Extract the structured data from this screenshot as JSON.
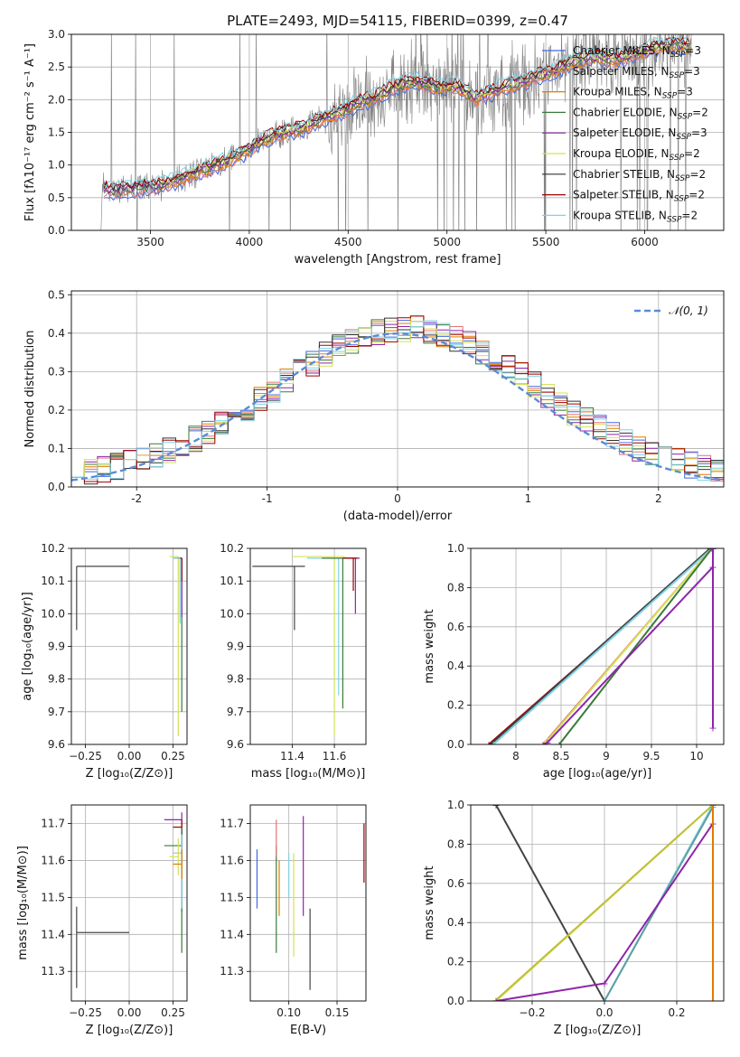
{
  "chart_data": [
    {
      "type": "line",
      "title": "PLATE=2493, MJD=54115, FIBERID=0399, z=0.47",
      "xlabel": "wavelength [Angstrom, rest frame]",
      "ylabel": "Flux [f$_\\lambda$ 10$^{-17}$ erg cm$^{-2}$ s$^{-1}$ A$^{-1}$]",
      "ylabel_display": "Flux [fλ10⁻¹⁷ erg cm⁻² s⁻¹ A⁻¹]",
      "xlim": [
        3100,
        6400
      ],
      "ylim": [
        0,
        3.0
      ],
      "xticks": [
        3500,
        4000,
        4500,
        5000,
        5500,
        6000
      ],
      "yticks": [
        0.0,
        0.5,
        1.0,
        1.5,
        2.0,
        2.5,
        3.0
      ],
      "legend": "top-right",
      "series": [
        {
          "name": "Chabrier MILES, N_SSP=3",
          "label": "Chabrier MILES, N",
          "sub": "SSP",
          "suf": "=3",
          "color": "#4169e1"
        },
        {
          "name": "Salpeter MILES, N_SSP=3",
          "label": "Salpeter MILES, N",
          "sub": "SSP",
          "suf": "=3",
          "color": "#e57373"
        },
        {
          "name": "Kroupa MILES, N_SSP=3",
          "label": "Kroupa MILES, N",
          "sub": "SSP",
          "suf": "=3",
          "color": "#e07b00"
        },
        {
          "name": "Chabrier ELODIE, N_SSP=2",
          "label": "Chabrier ELODIE, N",
          "sub": "SSP",
          "suf": "=2",
          "color": "#3a7a3a"
        },
        {
          "name": "Salpeter ELODIE, N_SSP=3",
          "label": "Salpeter ELODIE, N",
          "sub": "SSP",
          "suf": "=3",
          "color": "#8e24aa"
        },
        {
          "name": "Kroupa ELODIE, N_SSP=2",
          "label": "Kroupa ELODIE, N",
          "sub": "SSP",
          "suf": "=2",
          "color": "#d4e157"
        },
        {
          "name": "Chabrier STELIB, N_SSP=2",
          "label": "Chabrier STELIB, N",
          "sub": "SSP",
          "suf": "=2",
          "color": "#333333"
        },
        {
          "name": "Salpeter STELIB, N_SSP=2",
          "label": "Salpeter STELIB, N",
          "sub": "SSP",
          "suf": "=2",
          "color": "#9b0000"
        },
        {
          "name": "Kroupa STELIB, N_SSP=2",
          "label": "Kroupa STELIB, N",
          "sub": "SSP",
          "suf": "=2",
          "color": "#7fd3e6"
        }
      ],
      "continuum_wavelength": [
        3270,
        3350,
        3450,
        3550,
        3650,
        3750,
        3850,
        3950,
        4050,
        4150,
        4250,
        4350,
        4450,
        4550,
        4650,
        4750,
        4850,
        4950,
        5050,
        5150,
        5250,
        5350,
        5450,
        5550,
        5650,
        5750,
        5850,
        5950,
        6050,
        6150,
        6240
      ],
      "continuum_flux": [
        0.62,
        0.62,
        0.65,
        0.68,
        0.78,
        0.92,
        1.02,
        1.15,
        1.35,
        1.48,
        1.55,
        1.68,
        1.8,
        1.95,
        2.05,
        2.22,
        2.28,
        2.2,
        2.2,
        2.02,
        2.15,
        2.25,
        2.35,
        2.45,
        2.6,
        2.65,
        2.62,
        2.7,
        2.8,
        2.85,
        2.8
      ],
      "observed_color": "#808080"
    },
    {
      "type": "line",
      "xlabel": "(data-model)/error",
      "ylabel": "Normed distribution",
      "xlim": [
        -2.5,
        2.5
      ],
      "ylim": [
        0,
        0.51
      ],
      "xticks": [
        -2,
        -1,
        0,
        1,
        2
      ],
      "yticks": [
        0.0,
        0.1,
        0.2,
        0.3,
        0.4,
        0.5
      ],
      "reference_curve": {
        "name": "N(0,1)",
        "label_math": "𝒩(0, 1)",
        "mean": 0,
        "sigma": 1,
        "color": "#5b8bd6",
        "style": "dashed"
      },
      "histogram_bin_width": 0.1,
      "histogram_mean": 0.08,
      "histogram_sigma": 1.0,
      "legend": "top-right"
    },
    {
      "type": "scatter",
      "xlabel": "Z [log₁₀(Z/Z⊙)]",
      "ylabel": "age  [log₁₀(age/yr)]",
      "xlim": [
        -0.33,
        0.33
      ],
      "ylim": [
        9.6,
        10.2
      ],
      "xticks": [
        -0.25,
        0.0,
        0.25
      ],
      "xtick_labels": [
        "−0.25",
        "0.00",
        "0.25"
      ],
      "yticks": [
        9.6,
        9.7,
        9.8,
        9.9,
        10.0,
        10.1,
        10.2
      ],
      "errorbars": [
        {
          "color": "#444444",
          "x": -0.3,
          "y": 10.145,
          "xerr": [
            0,
            0.3
          ],
          "yerr": [
            0.195,
            0
          ]
        },
        {
          "color": "#d4e157",
          "x": 0.28,
          "y": 10.175,
          "xerr": [
            0.05,
            0
          ],
          "yerr": [
            0.55,
            0
          ]
        },
        {
          "color": "#3a7a3a",
          "x": 0.3,
          "y": 10.17,
          "xerr": [
            0.05,
            0
          ],
          "yerr": [
            0.47,
            0
          ]
        },
        {
          "color": "#8e24aa",
          "x": 0.3,
          "y": 10.17,
          "xerr": [
            0.03,
            0
          ],
          "yerr": [
            0.18,
            0
          ]
        },
        {
          "color": "#9b0000",
          "x": 0.3,
          "y": 10.17,
          "xerr": [
            0.02,
            0
          ],
          "yerr": [
            0.07,
            0
          ]
        },
        {
          "color": "#7fd3e6",
          "x": 0.29,
          "y": 10.17,
          "xerr": [
            0.04,
            0
          ],
          "yerr": [
            0.2,
            0
          ]
        }
      ]
    },
    {
      "type": "scatter",
      "xlabel": "mass [log₁₀(M/M⊙)]",
      "xlim": [
        11.2,
        11.75
      ],
      "ylim": [
        9.6,
        10.2
      ],
      "xticks": [
        11.4,
        11.6
      ],
      "yticks": [
        9.6,
        9.7,
        9.8,
        9.9,
        10.0,
        10.1,
        10.2
      ],
      "errorbars": [
        {
          "color": "#444444",
          "x": 11.41,
          "y": 10.145,
          "xerr": [
            0.2,
            0.05
          ],
          "yerr": [
            0.195,
            0
          ]
        },
        {
          "color": "#d4e157",
          "x": 11.6,
          "y": 10.175,
          "xerr": [
            0.2,
            0.05
          ],
          "yerr": [
            0.55,
            0
          ]
        },
        {
          "color": "#7fd3e6",
          "x": 11.62,
          "y": 10.17,
          "xerr": [
            0.15,
            0.05
          ],
          "yerr": [
            0.42,
            0
          ]
        },
        {
          "color": "#3a7a3a",
          "x": 11.64,
          "y": 10.17,
          "xerr": [
            0.1,
            0.05
          ],
          "yerr": [
            0.46,
            0
          ]
        },
        {
          "color": "#8e24aa",
          "x": 11.7,
          "y": 10.17,
          "xerr": [
            0.06,
            0.02
          ],
          "yerr": [
            0.17,
            0
          ]
        },
        {
          "color": "#9b0000",
          "x": 11.69,
          "y": 10.17,
          "xerr": [
            0.05,
            0.02
          ],
          "yerr": [
            0.1,
            0
          ]
        }
      ]
    },
    {
      "type": "line",
      "xlabel": "age  [log₁₀(age/yr)]",
      "ylabel": "mass weight",
      "xlim": [
        7.5,
        10.3
      ],
      "ylim": [
        0,
        1.0
      ],
      "xticks": [
        8.0,
        8.5,
        9.0,
        9.5,
        10.0
      ],
      "yticks": [
        0.0,
        0.2,
        0.4,
        0.6,
        0.8,
        1.0
      ],
      "series": [
        {
          "color": "#9b0000",
          "x": [
            7.7,
            10.17
          ],
          "y": [
            0.0,
            1.0
          ]
        },
        {
          "color": "#444444",
          "x": [
            7.72,
            10.15
          ],
          "y": [
            0.0,
            1.0
          ]
        },
        {
          "color": "#7fd3e6",
          "x": [
            7.75,
            10.17
          ],
          "y": [
            0.0,
            1.0
          ]
        },
        {
          "color": "#e57373",
          "x": [
            8.3,
            10.17
          ],
          "y": [
            0.0,
            1.0
          ]
        },
        {
          "color": "#d4e157",
          "x": [
            8.3,
            8.35,
            10.17
          ],
          "y": [
            0.0,
            0.02,
            1.0
          ]
        },
        {
          "color": "#3a7a3a",
          "x": [
            8.48,
            10.17
          ],
          "y": [
            0.0,
            1.0
          ]
        },
        {
          "color": "#8e24aa",
          "x": [
            8.3,
            8.35,
            10.18,
            10.18,
            10.18
          ],
          "y": [
            0.0,
            0.01,
            0.905,
            1.0,
            0.085
          ]
        }
      ]
    },
    {
      "type": "scatter",
      "xlabel": "Z [log₁₀(Z/Z⊙)]",
      "ylabel": "mass [log₁₀(M/M⊙)]",
      "xlim": [
        -0.33,
        0.33
      ],
      "ylim": [
        11.22,
        11.75
      ],
      "xticks": [
        -0.25,
        0.0,
        0.25
      ],
      "xtick_labels": [
        "−0.25",
        "0.00",
        "0.25"
      ],
      "yticks": [
        11.3,
        11.4,
        11.5,
        11.6,
        11.7
      ],
      "errorbars": [
        {
          "color": "#444444",
          "x": -0.3,
          "y": 11.405,
          "xerr": [
            0,
            0.3
          ],
          "yerr": [
            0.15,
            0.07
          ]
        },
        {
          "color": "#8e24aa",
          "x": 0.3,
          "y": 11.71,
          "xerr": [
            0.1,
            0
          ],
          "yerr": [
            0.25,
            0.02
          ]
        },
        {
          "color": "#9b0000",
          "x": 0.3,
          "y": 11.69,
          "xerr": [
            0.05,
            0
          ],
          "yerr": [
            0.05,
            0.02
          ]
        },
        {
          "color": "#3a7a3a",
          "x": 0.3,
          "y": 11.64,
          "xerr": [
            0.1,
            0
          ],
          "yerr": [
            0.29,
            0.05
          ]
        },
        {
          "color": "#7fd3e6",
          "x": 0.3,
          "y": 11.62,
          "xerr": [
            0.05,
            0
          ],
          "yerr": [
            0.15,
            0.05
          ]
        },
        {
          "color": "#d4e157",
          "x": 0.28,
          "y": 11.61,
          "xerr": [
            0.05,
            0
          ],
          "yerr": [
            0.05,
            0.05
          ]
        },
        {
          "color": "#e07b00",
          "x": 0.3,
          "y": 11.59,
          "xerr": [
            0.05,
            0
          ],
          "yerr": [
            0.04,
            0.04
          ]
        }
      ]
    },
    {
      "type": "scatter",
      "xlabel": "E(B-V)",
      "xlim": [
        0.06,
        0.18
      ],
      "ylim": [
        11.22,
        11.75
      ],
      "xticks": [
        0.1,
        0.15
      ],
      "xtick_labels": [
        "0.10",
        "0.15"
      ],
      "yticks": [
        11.3,
        11.4,
        11.5,
        11.6,
        11.7
      ],
      "errorbars": [
        {
          "color": "#4169e1",
          "x": 0.067,
          "yrange": [
            11.47,
            11.63
          ]
        },
        {
          "color": "#3a7a3a",
          "x": 0.087,
          "yrange": [
            11.35,
            11.64
          ]
        },
        {
          "color": "#e57373",
          "x": 0.087,
          "yrange": [
            11.61,
            11.71
          ]
        },
        {
          "color": "#e07b00",
          "x": 0.09,
          "yrange": [
            11.45,
            11.6
          ]
        },
        {
          "color": "#7fd3e6",
          "x": 0.1,
          "yrange": [
            11.5,
            11.62
          ]
        },
        {
          "color": "#d4e157",
          "x": 0.105,
          "yrange": [
            11.34,
            11.62
          ]
        },
        {
          "color": "#8e24aa",
          "x": 0.115,
          "yrange": [
            11.45,
            11.72
          ]
        },
        {
          "color": "#444444",
          "x": 0.122,
          "yrange": [
            11.25,
            11.47
          ]
        },
        {
          "color": "#9b0000",
          "x": 0.178,
          "yrange": [
            11.54,
            11.7
          ]
        }
      ]
    },
    {
      "type": "line",
      "xlabel": "Z [log₁₀(Z/Z⊙)]",
      "ylabel": "mass weight",
      "xlim": [
        -0.37,
        0.33
      ],
      "ylim": [
        0,
        1.0
      ],
      "xticks": [
        -0.2,
        0.0,
        0.2
      ],
      "xtick_labels": [
        "−0.2",
        "0.0",
        "0.2"
      ],
      "yticks": [
        0.0,
        0.2,
        0.4,
        0.6,
        0.8,
        1.0
      ],
      "series": [
        {
          "color": "#444444",
          "x": [
            -0.3,
            0.0
          ],
          "y": [
            1.0,
            0.0
          ]
        },
        {
          "color": "#d4e157",
          "x": [
            -0.3,
            0.3
          ],
          "y": [
            0.0,
            1.0
          ]
        },
        {
          "color": "#bfbf3a",
          "x": [
            -0.3,
            0.3
          ],
          "y": [
            0.005,
            1.0
          ]
        },
        {
          "color": "#7fd3e6",
          "x": [
            0.0,
            0.3
          ],
          "y": [
            0.0,
            1.0
          ]
        },
        {
          "color": "#5fa0a0",
          "x": [
            0.0,
            0.3
          ],
          "y": [
            0.0,
            0.99
          ]
        },
        {
          "color": "#8e24aa",
          "x": [
            -0.3,
            0.0,
            0.0,
            0.3,
            0.3
          ],
          "y": [
            0.0,
            0.09,
            0.09,
            0.905,
            1.0
          ]
        },
        {
          "color": "#e07b00",
          "x": [
            0.3,
            0.3
          ],
          "y": [
            0.0,
            1.0
          ]
        }
      ]
    }
  ]
}
